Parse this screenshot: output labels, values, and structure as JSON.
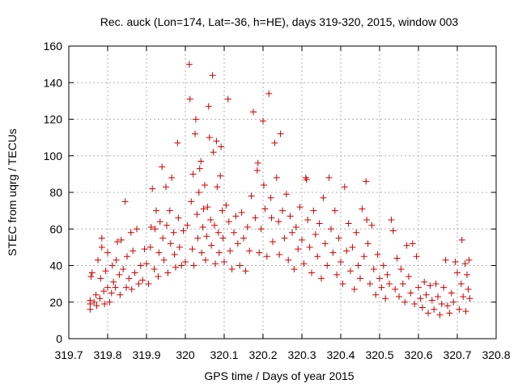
{
  "chart_data": {
    "type": "scatter",
    "title": "Rec. auck (Lon=174, Lat=-36, h=HE), days 319-320, 2015, window 003",
    "xlabel": "GPS time / Days of year 2015",
    "ylabel": "STEC from uqrg / TECUs",
    "xlim": [
      319.7,
      320.8
    ],
    "ylim": [
      0,
      160
    ],
    "xticks": [
      319.7,
      319.8,
      319.9,
      320.0,
      320.1,
      320.2,
      320.3,
      320.4,
      320.5,
      320.6,
      320.7,
      320.8
    ],
    "xtick_labels": [
      "319.7",
      "319.8",
      "319.9",
      "320",
      "320.1",
      "320.2",
      "320.3",
      "320.4",
      "320.5",
      "320.6",
      "320.7",
      "320.8"
    ],
    "yticks": [
      0,
      20,
      40,
      60,
      80,
      100,
      120,
      140,
      160
    ],
    "ytick_labels": [
      "0",
      "20",
      "40",
      "60",
      "80",
      "100",
      "120",
      "140",
      "160"
    ],
    "grid": true,
    "marker": "+",
    "color": "#cc0000",
    "series": [
      {
        "name": "STEC",
        "points": [
          [
            319.755,
            16
          ],
          [
            319.755,
            19
          ],
          [
            319.755,
            21
          ],
          [
            319.757,
            34
          ],
          [
            319.76,
            36
          ],
          [
            319.765,
            20
          ],
          [
            319.77,
            24
          ],
          [
            319.772,
            18
          ],
          [
            319.775,
            43
          ],
          [
            319.78,
            22
          ],
          [
            319.782,
            33
          ],
          [
            319.785,
            55
          ],
          [
            319.785,
            50
          ],
          [
            319.79,
            26
          ],
          [
            319.792,
            19
          ],
          [
            319.795,
            37
          ],
          [
            319.8,
            28
          ],
          [
            319.8,
            47
          ],
          [
            319.805,
            20
          ],
          [
            319.81,
            25
          ],
          [
            319.812,
            40
          ],
          [
            319.815,
            31
          ],
          [
            319.82,
            28
          ],
          [
            319.822,
            43
          ],
          [
            319.825,
            53
          ],
          [
            319.83,
            35
          ],
          [
            319.832,
            24
          ],
          [
            319.835,
            54
          ],
          [
            319.84,
            38
          ],
          [
            319.845,
            75
          ],
          [
            319.848,
            28
          ],
          [
            319.85,
            45
          ],
          [
            319.855,
            33
          ],
          [
            319.86,
            58
          ],
          [
            319.862,
            27
          ],
          [
            319.865,
            48
          ],
          [
            319.87,
            36
          ],
          [
            319.875,
            60
          ],
          [
            319.88,
            30
          ],
          [
            319.885,
            40
          ],
          [
            319.89,
            32
          ],
          [
            319.895,
            49
          ],
          [
            319.9,
            41
          ],
          [
            319.905,
            30
          ],
          [
            319.91,
            50
          ],
          [
            319.912,
            61
          ],
          [
            319.915,
            82
          ],
          [
            319.92,
            38
          ],
          [
            319.922,
            60
          ],
          [
            319.925,
            70
          ],
          [
            319.93,
            34
          ],
          [
            319.932,
            47
          ],
          [
            319.935,
            64
          ],
          [
            319.94,
            94
          ],
          [
            319.942,
            55
          ],
          [
            319.945,
            43
          ],
          [
            319.95,
            83
          ],
          [
            319.952,
            62
          ],
          [
            319.955,
            36
          ],
          [
            319.96,
            70
          ],
          [
            319.962,
            52
          ],
          [
            319.965,
            88
          ],
          [
            319.97,
            58
          ],
          [
            319.972,
            46
          ],
          [
            319.975,
            39
          ],
          [
            319.98,
            107
          ],
          [
            319.982,
            66
          ],
          [
            319.985,
            50
          ],
          [
            319.99,
            40
          ],
          [
            319.995,
            59
          ],
          [
            320.0,
            42
          ],
          [
            320.005,
            62
          ],
          [
            320.01,
            150
          ],
          [
            320.012,
            131
          ],
          [
            320.015,
            75
          ],
          [
            320.018,
            49
          ],
          [
            320.02,
            90
          ],
          [
            320.022,
            40
          ],
          [
            320.025,
            112
          ],
          [
            320.027,
            120
          ],
          [
            320.03,
            68
          ],
          [
            320.032,
            55
          ],
          [
            320.035,
            80
          ],
          [
            320.037,
            93
          ],
          [
            320.04,
            97
          ],
          [
            320.042,
            47
          ],
          [
            320.045,
            61
          ],
          [
            320.047,
            71
          ],
          [
            320.05,
            84
          ],
          [
            320.052,
            43
          ],
          [
            320.055,
            56
          ],
          [
            320.057,
            72
          ],
          [
            320.06,
            127
          ],
          [
            320.062,
            110
          ],
          [
            320.065,
            65
          ],
          [
            320.067,
            51
          ],
          [
            320.07,
            144
          ],
          [
            320.072,
            102
          ],
          [
            320.075,
            62
          ],
          [
            320.077,
            41
          ],
          [
            320.08,
            108
          ],
          [
            320.082,
            83
          ],
          [
            320.085,
            58
          ],
          [
            320.087,
            47
          ],
          [
            320.09,
            89
          ],
          [
            320.092,
            105
          ],
          [
            320.095,
            70
          ],
          [
            320.097,
            55
          ],
          [
            320.1,
            42
          ],
          [
            320.105,
            73
          ],
          [
            320.11,
            131
          ],
          [
            320.112,
            64
          ],
          [
            320.115,
            48
          ],
          [
            320.12,
            38
          ],
          [
            320.125,
            58
          ],
          [
            320.13,
            67
          ],
          [
            320.135,
            52
          ],
          [
            320.14,
            40
          ],
          [
            320.145,
            69
          ],
          [
            320.15,
            55
          ],
          [
            320.155,
            37
          ],
          [
            320.16,
            61
          ],
          [
            320.165,
            48
          ],
          [
            320.17,
            78
          ],
          [
            320.175,
            124
          ],
          [
            320.18,
            66
          ],
          [
            320.185,
            92
          ],
          [
            320.187,
            96
          ],
          [
            320.19,
            47
          ],
          [
            320.195,
            60
          ],
          [
            320.2,
            119
          ],
          [
            320.202,
            84
          ],
          [
            320.205,
            71
          ],
          [
            320.21,
            45
          ],
          [
            320.215,
            134
          ],
          [
            320.22,
            77
          ],
          [
            320.222,
            66
          ],
          [
            320.225,
            53
          ],
          [
            320.23,
            107
          ],
          [
            320.235,
            88
          ],
          [
            320.24,
            64
          ],
          [
            320.242,
            46
          ],
          [
            320.245,
            112
          ],
          [
            320.25,
            70
          ],
          [
            320.255,
            55
          ],
          [
            320.26,
            79
          ],
          [
            320.265,
            43
          ],
          [
            320.27,
            67
          ],
          [
            320.275,
            58
          ],
          [
            320.28,
            38
          ],
          [
            320.285,
            61
          ],
          [
            320.29,
            49
          ],
          [
            320.295,
            72
          ],
          [
            320.3,
            54
          ],
          [
            320.305,
            41
          ],
          [
            320.31,
            88
          ],
          [
            320.312,
            87
          ],
          [
            320.315,
            65
          ],
          [
            320.32,
            50
          ],
          [
            320.325,
            36
          ],
          [
            320.33,
            70
          ],
          [
            320.335,
            57
          ],
          [
            320.34,
            45
          ],
          [
            320.345,
            63
          ],
          [
            320.35,
            33
          ],
          [
            320.355,
            77
          ],
          [
            320.36,
            52
          ],
          [
            320.365,
            40
          ],
          [
            320.37,
            88
          ],
          [
            320.375,
            60
          ],
          [
            320.38,
            47
          ],
          [
            320.385,
            70
          ],
          [
            320.39,
            35
          ],
          [
            320.395,
            55
          ],
          [
            320.4,
            42
          ],
          [
            320.405,
            30
          ],
          [
            320.41,
            83
          ],
          [
            320.415,
            48
          ],
          [
            320.42,
            63
          ],
          [
            320.425,
            37
          ],
          [
            320.43,
            50
          ],
          [
            320.435,
            27
          ],
          [
            320.44,
            58
          ],
          [
            320.445,
            40
          ],
          [
            320.45,
            33
          ],
          [
            320.455,
            71
          ],
          [
            320.46,
            45
          ],
          [
            320.465,
            86
          ],
          [
            320.467,
            65
          ],
          [
            320.47,
            52
          ],
          [
            320.475,
            30
          ],
          [
            320.48,
            62
          ],
          [
            320.485,
            38
          ],
          [
            320.49,
            24
          ],
          [
            320.495,
            46
          ],
          [
            320.5,
            33
          ],
          [
            320.505,
            28
          ],
          [
            320.51,
            40
          ],
          [
            320.515,
            22
          ],
          [
            320.52,
            35
          ],
          [
            320.525,
            30
          ],
          [
            320.53,
            65
          ],
          [
            320.535,
            59
          ],
          [
            320.54,
            27
          ],
          [
            320.545,
            44
          ],
          [
            320.55,
            23
          ],
          [
            320.555,
            38
          ],
          [
            320.56,
            30
          ],
          [
            320.565,
            20
          ],
          [
            320.57,
            51
          ],
          [
            320.575,
            34
          ],
          [
            320.58,
            25
          ],
          [
            320.585,
            52
          ],
          [
            320.59,
            19
          ],
          [
            320.595,
            45
          ],
          [
            320.6,
            28
          ],
          [
            320.605,
            22
          ],
          [
            320.61,
            17
          ],
          [
            320.615,
            31
          ],
          [
            320.62,
            24
          ],
          [
            320.625,
            14
          ],
          [
            320.63,
            29
          ],
          [
            320.635,
            21
          ],
          [
            320.64,
            16
          ],
          [
            320.645,
            30
          ],
          [
            320.65,
            23
          ],
          [
            320.655,
            13
          ],
          [
            320.66,
            19
          ],
          [
            320.665,
            28
          ],
          [
            320.67,
            43
          ],
          [
            320.675,
            18
          ],
          [
            320.68,
            14
          ],
          [
            320.685,
            25
          ],
          [
            320.69,
            20
          ],
          [
            320.695,
            42
          ],
          [
            320.7,
            36
          ],
          [
            320.705,
            16
          ],
          [
            320.71,
            30
          ],
          [
            320.712,
            54
          ],
          [
            320.715,
            23
          ],
          [
            320.72,
            41
          ],
          [
            320.722,
            15
          ],
          [
            320.725,
            35
          ],
          [
            320.728,
            27
          ],
          [
            320.73,
            43
          ],
          [
            320.732,
            22
          ]
        ]
      }
    ]
  }
}
